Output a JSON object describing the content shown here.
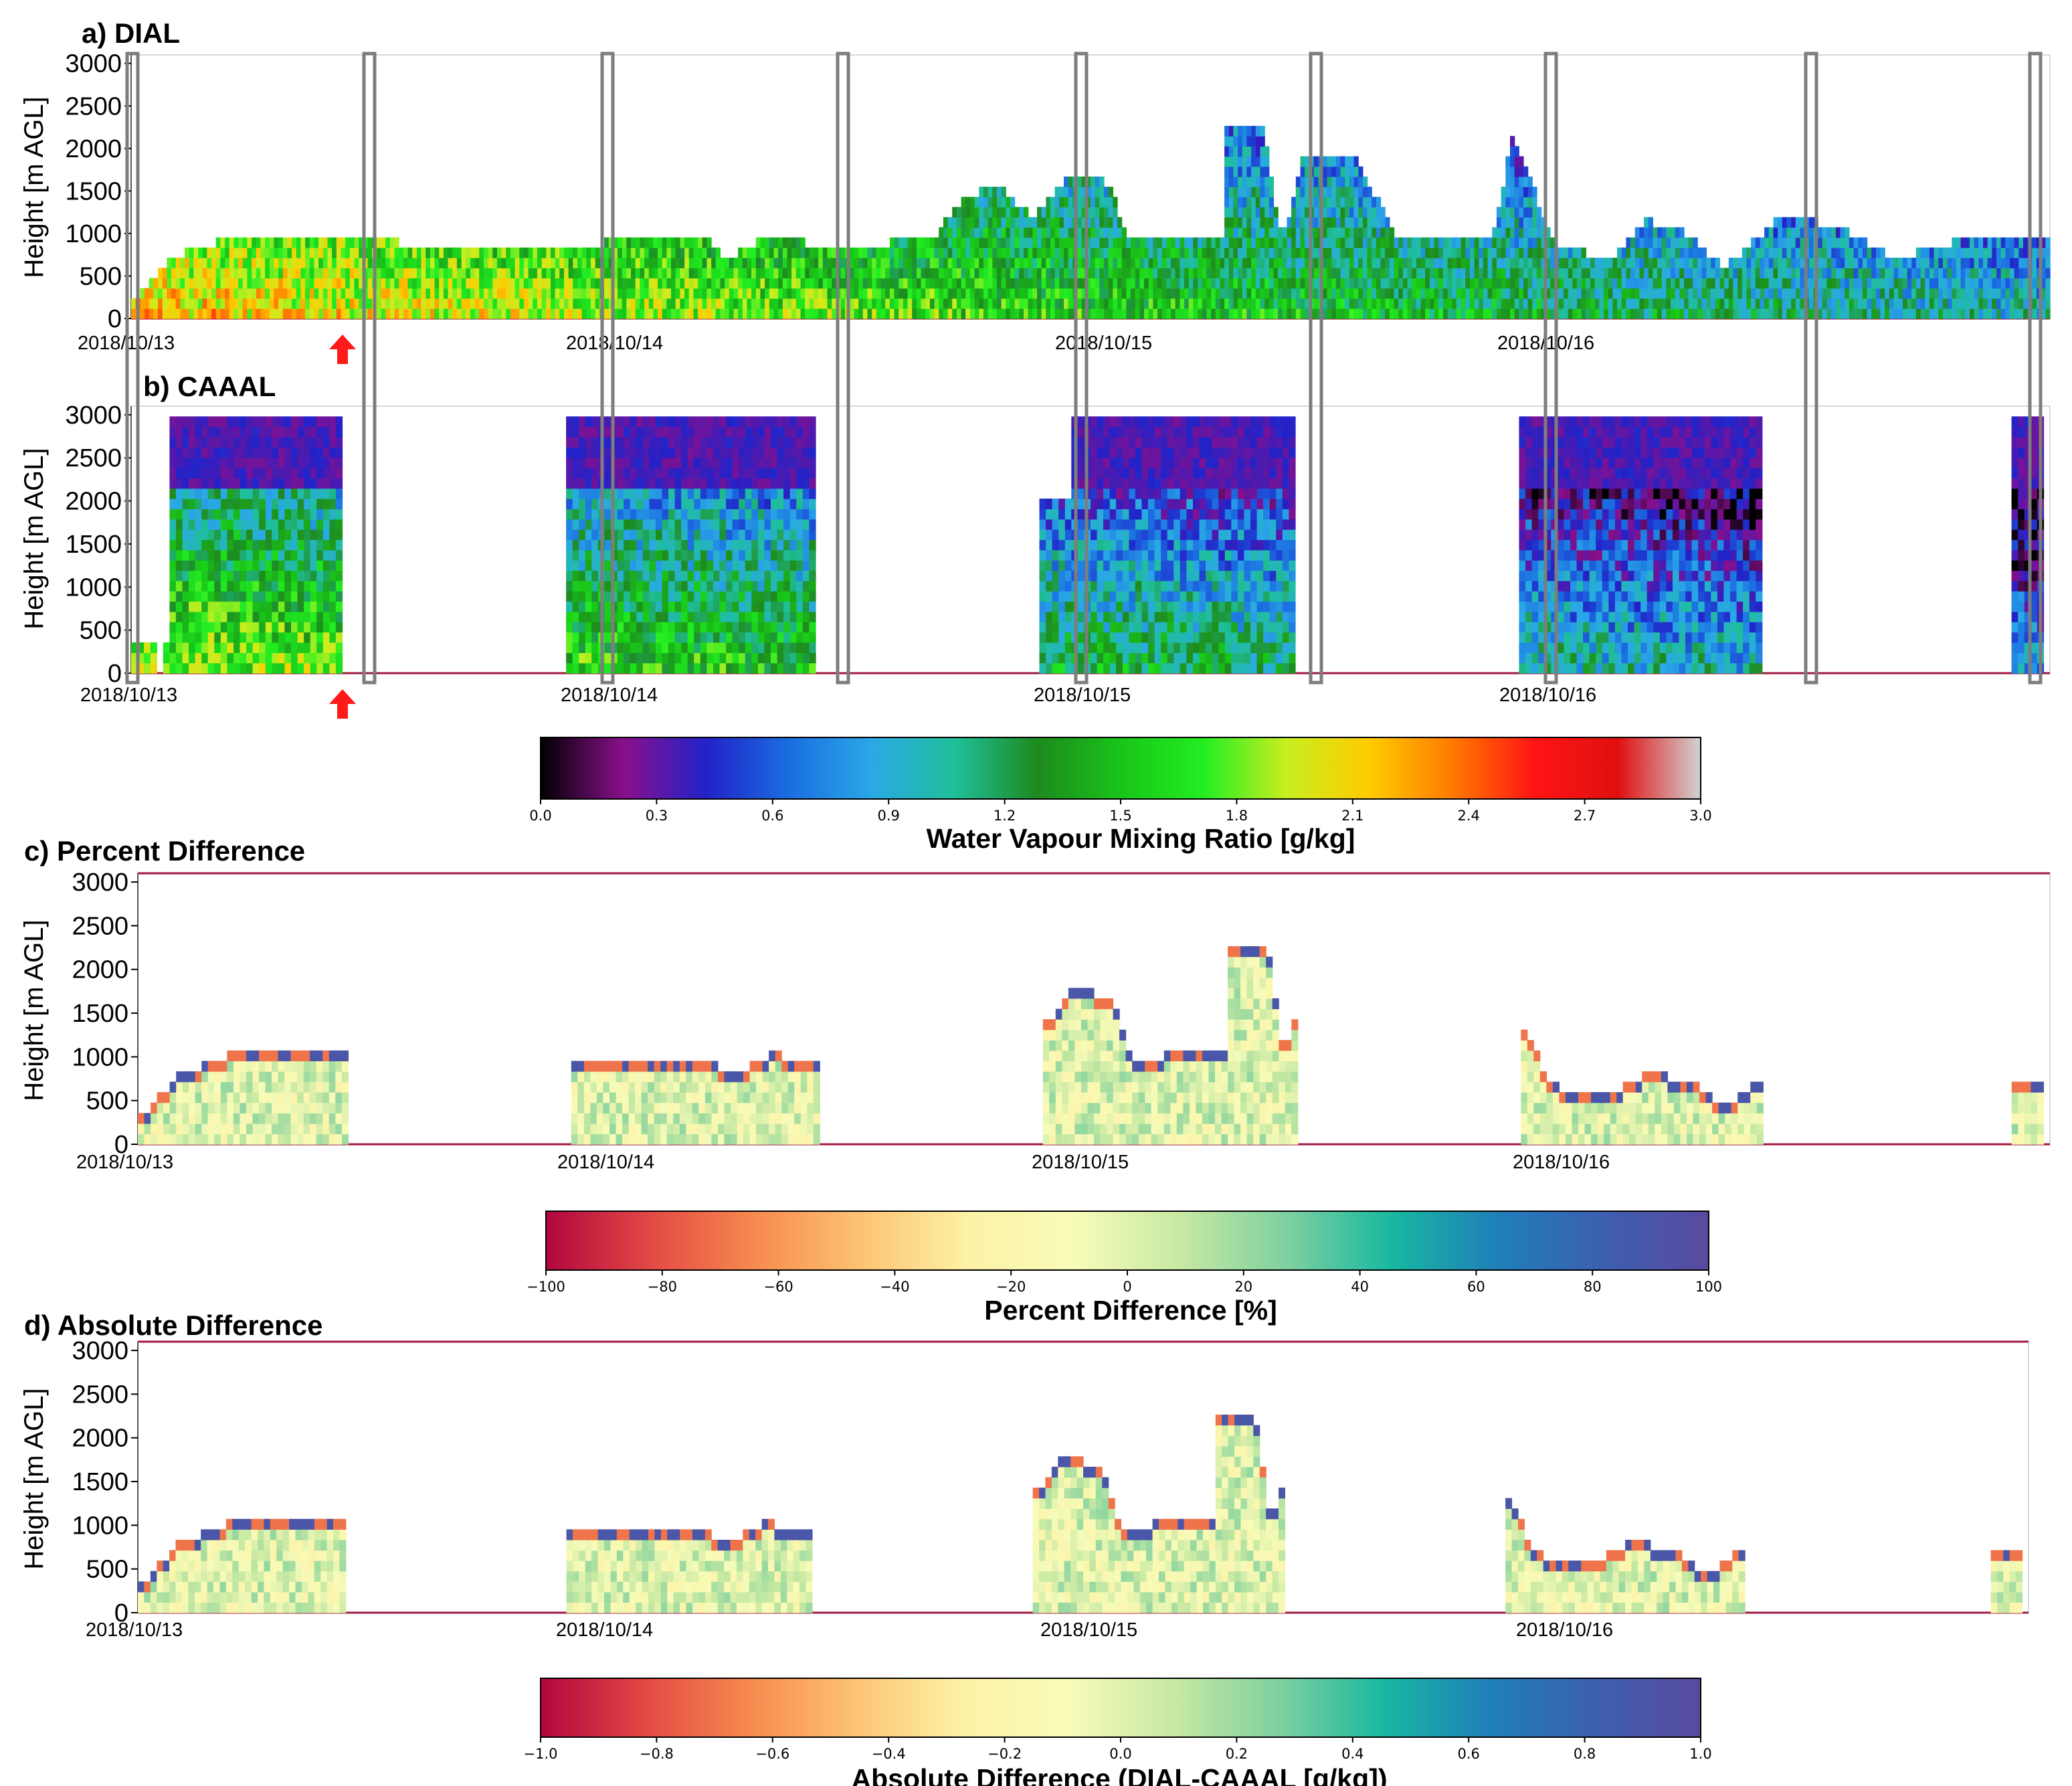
{
  "colors": {
    "frame": "#d8d8d8",
    "bottom_line": "#a0173f",
    "gap_box": "#7d7d7d",
    "arrow": "#ff1a1a",
    "text": "#000000"
  },
  "chart_data": [
    {
      "type": "heatmap",
      "title": "a) DIAL",
      "ylabel": "Height [m AGL]",
      "ylim": [
        0,
        3100
      ],
      "yticks": [
        "0",
        "500",
        "1000",
        "1500",
        "2000",
        "2500",
        "3000"
      ],
      "xlabels": [
        "2018/10/13",
        "2018/10/14",
        "2018/10/15",
        "2018/10/16"
      ],
      "colormap": "mixing",
      "data_extent": [
        [
          0.0,
          1.0
        ]
      ],
      "profile_top_m": [
        [
          0.0,
          200
        ],
        [
          0.02,
          700
        ],
        [
          0.05,
          950
        ],
        [
          0.1,
          950
        ],
        [
          0.15,
          880
        ],
        [
          0.2,
          820
        ],
        [
          0.25,
          900
        ],
        [
          0.3,
          920
        ],
        [
          0.31,
          700
        ],
        [
          0.33,
          950
        ],
        [
          0.38,
          820
        ],
        [
          0.42,
          1000
        ],
        [
          0.43,
          1350
        ],
        [
          0.45,
          1600
        ],
        [
          0.47,
          1200
        ],
        [
          0.49,
          1700
        ],
        [
          0.51,
          1600
        ],
        [
          0.52,
          900
        ],
        [
          0.57,
          1000
        ],
        [
          0.57,
          2300
        ],
        [
          0.59,
          2250
        ],
        [
          0.6,
          900
        ],
        [
          0.61,
          1900
        ],
        [
          0.64,
          1850
        ],
        [
          0.66,
          900
        ],
        [
          0.71,
          1000
        ],
        [
          0.72,
          2150
        ],
        [
          0.73,
          1600
        ],
        [
          0.74,
          900
        ],
        [
          0.77,
          700
        ],
        [
          0.79,
          1150
        ],
        [
          0.81,
          1000
        ],
        [
          0.83,
          600
        ],
        [
          0.86,
          1200
        ],
        [
          0.89,
          1100
        ],
        [
          0.92,
          700
        ],
        [
          0.95,
          900
        ],
        [
          1.0,
          900
        ]
      ]
    },
    {
      "type": "heatmap",
      "title": "b) CAAAL",
      "ylabel": "Height [m AGL]",
      "ylim": [
        0,
        3100
      ],
      "yticks": [
        "0",
        "500",
        "1000",
        "1500",
        "2000",
        "2500",
        "3000"
      ],
      "xlabels": [
        "2018/10/13",
        "2018/10/14",
        "2018/10/15",
        "2018/10/16"
      ],
      "colormap": "mixing",
      "segments": [
        [
          0.0,
          0.013
        ],
        [
          0.016,
          0.11
        ],
        [
          0.228,
          0.358
        ],
        [
          0.475,
          0.605
        ],
        [
          0.723,
          0.85
        ],
        [
          0.979,
          0.996
        ]
      ]
    },
    {
      "type": "heatmap",
      "title": "c) Percent Difference",
      "ylabel": "Height [m AGL]",
      "ylim": [
        0,
        3100
      ],
      "yticks": [
        "0",
        "500",
        "1000",
        "1500",
        "2000",
        "2500",
        "3000"
      ],
      "xlabels": [
        "2018/10/13",
        "2018/10/14",
        "2018/10/15",
        "2018/10/16"
      ],
      "colormap": "diverging",
      "segments": [
        [
          0.0,
          0.11
        ],
        [
          0.228,
          0.358
        ],
        [
          0.475,
          0.605
        ],
        [
          0.723,
          0.85
        ],
        [
          0.979,
          0.996
        ]
      ]
    },
    {
      "type": "heatmap",
      "title": "d) Absolute Difference",
      "ylabel": "Height [m AGL]",
      "ylim": [
        0,
        3100
      ],
      "yticks": [
        "0",
        "500",
        "1000",
        "1500",
        "2000",
        "2500",
        "3000"
      ],
      "xlabels": [
        "2018/10/13",
        "2018/10/14",
        "2018/10/15",
        "2018/10/16"
      ],
      "colormap": "diverging",
      "segments": [
        [
          0.0,
          0.11
        ],
        [
          0.228,
          0.358
        ],
        [
          0.475,
          0.605
        ],
        [
          0.723,
          0.85
        ],
        [
          0.979,
          0.996
        ]
      ]
    }
  ],
  "colorbars": [
    {
      "label": "Water Vapour Mixing Ratio [g/kg]",
      "ticks": [
        "0.0",
        "0.3",
        "0.6",
        "0.9",
        "1.2",
        "1.5",
        "1.8",
        "2.1",
        "2.4",
        "2.7",
        "3.0"
      ],
      "stops": [
        "#000000",
        "#8a0f8c",
        "#2222c8",
        "#1a6ee0",
        "#2aa8e6",
        "#1fbf9a",
        "#1e8a1e",
        "#19c419",
        "#22ee22",
        "#c8ee20",
        "#ffcc00",
        "#ff7a00",
        "#ff1414",
        "#e01010",
        "#d2d2d2"
      ]
    },
    {
      "label": "Percent Difference [%]",
      "ticks": [
        "−100",
        "−80",
        "−60",
        "−40",
        "−20",
        "0",
        "20",
        "40",
        "60",
        "80",
        "100"
      ],
      "stops": [
        "#b1063f",
        "#e34a44",
        "#f78b4f",
        "#fdc474",
        "#fdf2a6",
        "#f7fbb8",
        "#c7e9a3",
        "#7fd0a0",
        "#18b8a0",
        "#1f7fb9",
        "#3d5fb0",
        "#5a4a9f"
      ]
    },
    {
      "label": "Absolute Difference (DIAL-CAAAL [g/kg])",
      "ticks": [
        "−1.0",
        "−0.8",
        "−0.6",
        "−0.4",
        "−0.2",
        "0.0",
        "0.2",
        "0.4",
        "0.6",
        "0.8",
        "1.0"
      ],
      "stops": [
        "#b1063f",
        "#e34a44",
        "#f78b4f",
        "#fdc474",
        "#fdf2a6",
        "#f7fbb8",
        "#c7e9a3",
        "#7fd0a0",
        "#18b8a0",
        "#1f7fb9",
        "#3d5fb0",
        "#5a4a9f"
      ]
    }
  ]
}
